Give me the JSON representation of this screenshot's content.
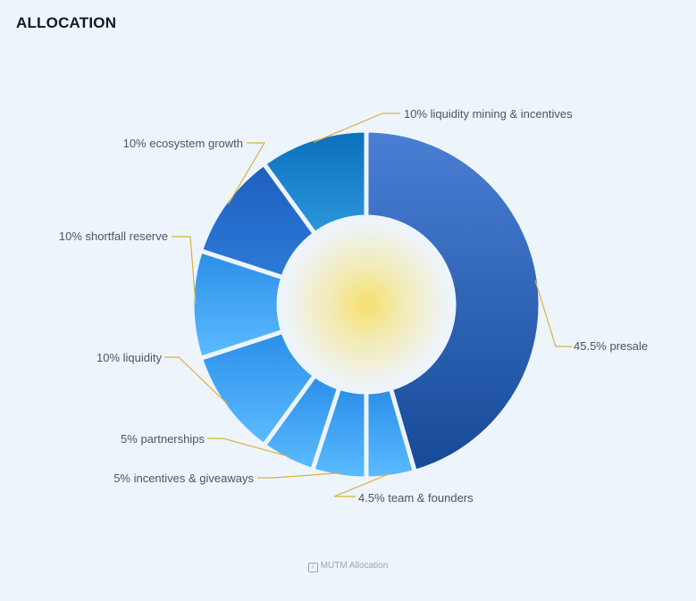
{
  "title": "ALLOCATION",
  "caption": "MUTM Allocation",
  "chart_data": {
    "type": "pie",
    "donut": true,
    "slices": [
      {
        "label": "45.5% presale",
        "value": 45.5
      },
      {
        "label": "4.5% team & founders",
        "value": 4.5
      },
      {
        "label": "5% incentives & giveaways",
        "value": 5
      },
      {
        "label": "5% partnerships",
        "value": 5
      },
      {
        "label": "10% liquidity",
        "value": 10
      },
      {
        "label": "10% shortfall reserve",
        "value": 10
      },
      {
        "label": "10% ecosystem growth",
        "value": 10
      },
      {
        "label": "10% liquidity mining & incentives",
        "value": 10
      }
    ],
    "colors": {
      "presale_top": "#4a7fd4",
      "presale_bottom": "#164a98",
      "light_top": "#2a8ee8",
      "light_bottom": "#5cbcff",
      "eco_top": "#1e5fbf",
      "eco_bottom": "#2d7ad8",
      "mining_top": "#0a70bb",
      "mining_bottom": "#2c96dc",
      "leader": "#d8b23d",
      "center_glow": "#f6e06c"
    }
  }
}
